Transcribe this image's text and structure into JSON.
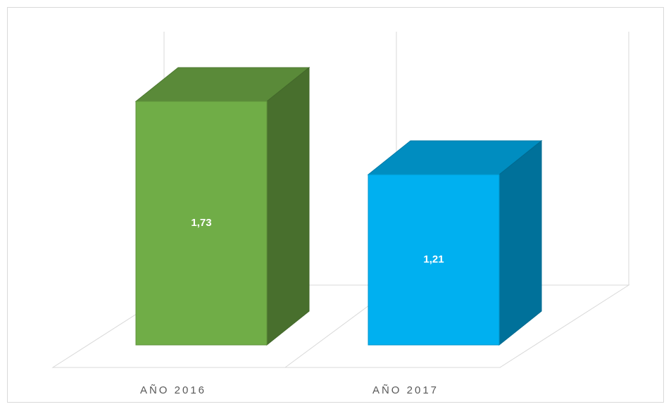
{
  "chart_data": {
    "type": "bar3d",
    "categories": [
      "AÑO 2016",
      "AÑO 2017"
    ],
    "values": [
      1.73,
      1.21
    ],
    "value_labels": [
      "1,73",
      "1,21"
    ],
    "colors": [
      "#70ad47",
      "#00b0f0"
    ]
  }
}
